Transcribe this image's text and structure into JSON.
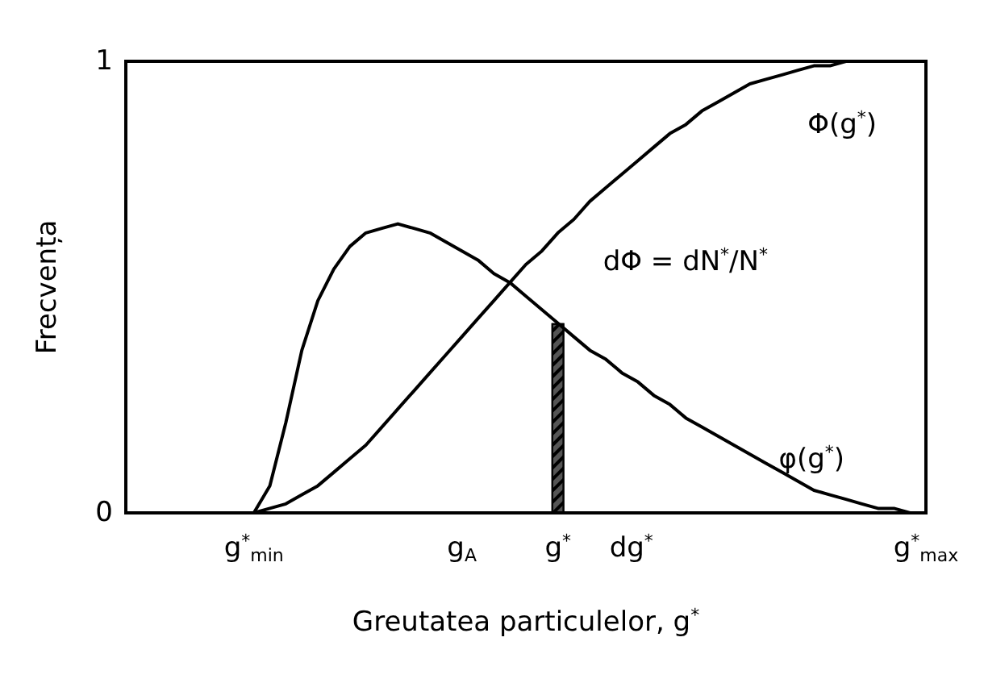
{
  "chart_data": {
    "type": "line",
    "xlabel": "Greutatea particulelor, g$^{*}$",
    "ylabel": "Frecvența",
    "categories": [
      null,
      null,
      null,
      null,
      null,
      null,
      null,
      null,
      "g$^{*}$$_{min}$",
      null,
      null,
      null,
      null,
      null,
      null,
      null,
      null,
      null,
      null,
      null,
      null,
      "g$_{A}$",
      null,
      null,
      null,
      null,
      null,
      "g$^{*}$",
      null,
      null,
      null,
      null,
      null,
      null,
      null,
      null,
      null,
      null,
      null,
      null,
      null,
      null,
      null,
      null,
      null,
      null,
      null,
      null,
      null,
      null,
      "g$^{*}$$_{max}$"
    ],
    "ylim": [
      0,
      1
    ],
    "yticks": [
      0,
      1
    ],
    "grid": false,
    "legend": false,
    "marker": "none",
    "line_style": "solid",
    "series": [
      {
        "name": "Φ(g$^{*}$)",
        "color": "#000000",
        "values": [
          null,
          null,
          null,
          null,
          null,
          null,
          null,
          null,
          0,
          0.01,
          0.02,
          0.04,
          0.06,
          0.09,
          0.12,
          0.15,
          0.19,
          0.23,
          0.27,
          0.31,
          0.35,
          0.39,
          0.43,
          0.47,
          0.51,
          0.55,
          0.58,
          0.62,
          0.65,
          0.69,
          0.72,
          0.75,
          0.78,
          0.81,
          0.84,
          0.86,
          0.89,
          0.91,
          0.93,
          0.95,
          0.96,
          0.97,
          0.98,
          0.99,
          0.99,
          1,
          1,
          1,
          1,
          1,
          1
        ]
      },
      {
        "name": "φ(g$^{*}$)",
        "color": "#000000",
        "values": [
          null,
          null,
          null,
          null,
          null,
          null,
          null,
          null,
          0,
          0.06,
          0.2,
          0.36,
          0.47,
          0.54,
          0.59,
          0.62,
          0.63,
          0.64,
          0.63,
          0.62,
          0.6,
          0.58,
          0.56,
          0.53,
          0.51,
          0.48,
          0.45,
          0.42,
          0.39,
          0.36,
          0.34,
          0.31,
          0.29,
          0.26,
          0.24,
          0.21,
          0.19,
          0.17,
          0.15,
          0.13,
          0.11,
          0.09,
          0.07,
          0.05,
          0.04,
          0.03,
          0.02,
          0.01,
          0.01,
          0,
          0
        ]
      },
      {
        "type": "bar",
        "color": "#555555",
        "values": [
          null,
          null,
          null,
          null,
          null,
          null,
          null,
          null,
          null,
          null,
          null,
          null,
          null,
          null,
          null,
          null,
          null,
          null,
          null,
          null,
          null,
          null,
          null,
          null,
          null,
          null,
          null,
          0.42,
          null,
          null,
          null,
          null,
          null,
          null,
          null,
          null,
          null,
          null,
          null,
          null,
          null,
          null,
          null,
          null,
          null,
          null,
          null,
          null,
          null,
          null,
          null
        ]
      }
    ],
    "annotations": [
      "dΦ = dN$^{*}$/N$^{*}$",
      "dg$^{*}$"
    ]
  }
}
